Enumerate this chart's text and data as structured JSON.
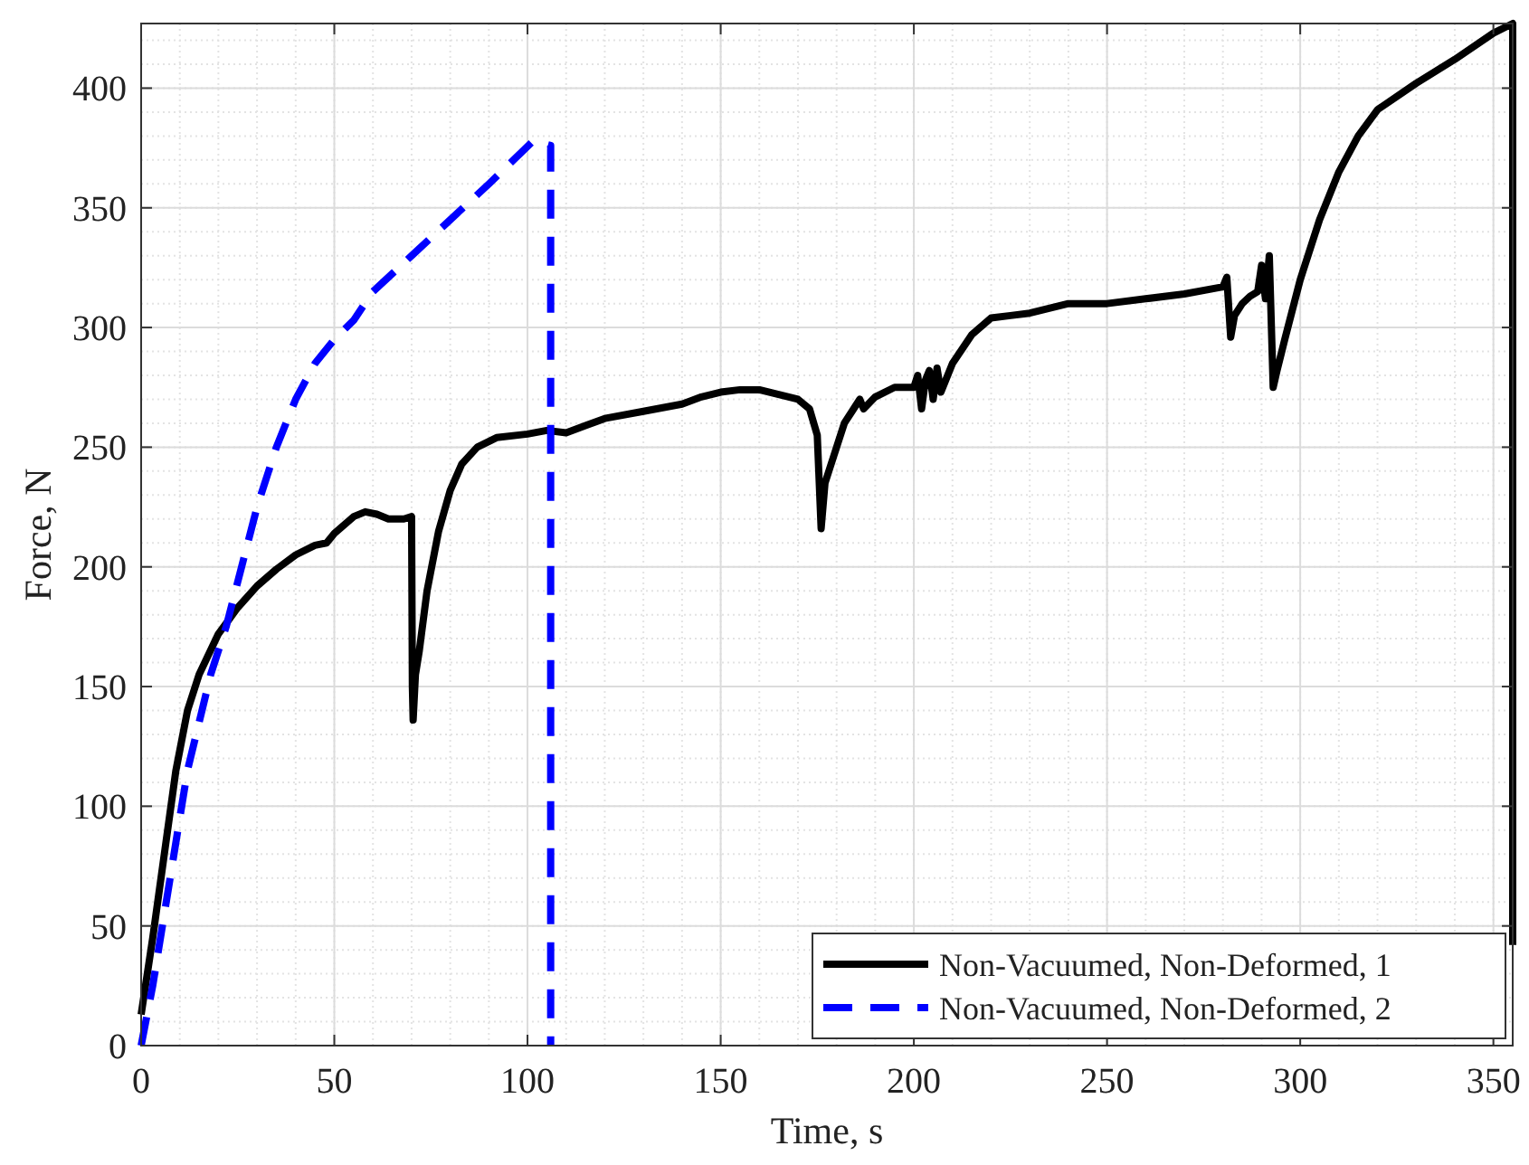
{
  "chart_data": {
    "type": "line",
    "xlabel": "Time, s",
    "ylabel": "Force, N",
    "xlim": [
      0,
      355
    ],
    "ylim": [
      0,
      427
    ],
    "xticks": [
      0,
      50,
      100,
      150,
      200,
      250,
      300,
      350
    ],
    "yticks": [
      0,
      50,
      100,
      150,
      200,
      250,
      300,
      350,
      400
    ],
    "grid": true,
    "legend": "bottom right",
    "series": [
      {
        "name": "Non-Vacuumed, Non-Deformed, 1",
        "color": "#000000",
        "line_style": "solid",
        "x": [
          0,
          3,
          6,
          9,
          12,
          15,
          20,
          25,
          30,
          35,
          40,
          45,
          48,
          50,
          55,
          58,
          61,
          64,
          68,
          70,
          70.2,
          70.4,
          71,
          72,
          74,
          77,
          80,
          83,
          87,
          92,
          100,
          105,
          110,
          115,
          120,
          130,
          140,
          145,
          150,
          155,
          160,
          165,
          170,
          173,
          175,
          176,
          177,
          179,
          182,
          184,
          186,
          187,
          190,
          195,
          200,
          201,
          202,
          203,
          204,
          205,
          206,
          207,
          210,
          215,
          220,
          225,
          230,
          240,
          250,
          260,
          270,
          280,
          281,
          282,
          283,
          285,
          287,
          289,
          290,
          291,
          292,
          293,
          294,
          296,
          300,
          305,
          310,
          315,
          320,
          330,
          340,
          350,
          355,
          355
        ],
        "values": [
          13,
          45,
          80,
          115,
          140,
          155,
          172,
          183,
          192,
          199,
          205,
          209,
          210,
          214,
          221,
          223,
          222,
          220,
          220,
          221,
          150,
          136,
          155,
          165,
          190,
          215,
          232,
          243,
          250,
          254,
          255.5,
          257,
          256,
          259,
          262,
          265,
          268,
          271,
          273,
          274,
          274,
          272,
          270,
          266,
          255,
          216,
          235,
          245,
          260,
          265,
          270,
          266,
          271,
          275,
          275,
          280,
          266,
          278,
          282,
          270,
          283,
          273,
          285,
          297,
          304,
          305,
          306,
          310,
          310,
          312,
          314,
          317,
          321,
          296,
          305,
          310,
          313,
          315,
          326,
          312,
          330,
          275,
          282,
          295,
          320,
          345,
          365,
          380,
          391,
          402,
          412,
          423,
          427,
          42
        ]
      },
      {
        "name": "Non-Vacuumed, Non-Deformed, 2",
        "color": "#0000ff",
        "line_style": "dashed",
        "x": [
          0,
          3,
          6,
          9,
          12,
          15,
          18,
          22,
          26,
          30,
          35,
          40,
          45,
          50,
          55,
          60,
          70,
          80,
          90,
          101.5,
          106,
          106
        ],
        "values": [
          0,
          25,
          55,
          85,
          115,
          135,
          155,
          175,
          200,
          225,
          250,
          270,
          285,
          295,
          303,
          315,
          330,
          345,
          360,
          378,
          376,
          0
        ]
      }
    ]
  }
}
